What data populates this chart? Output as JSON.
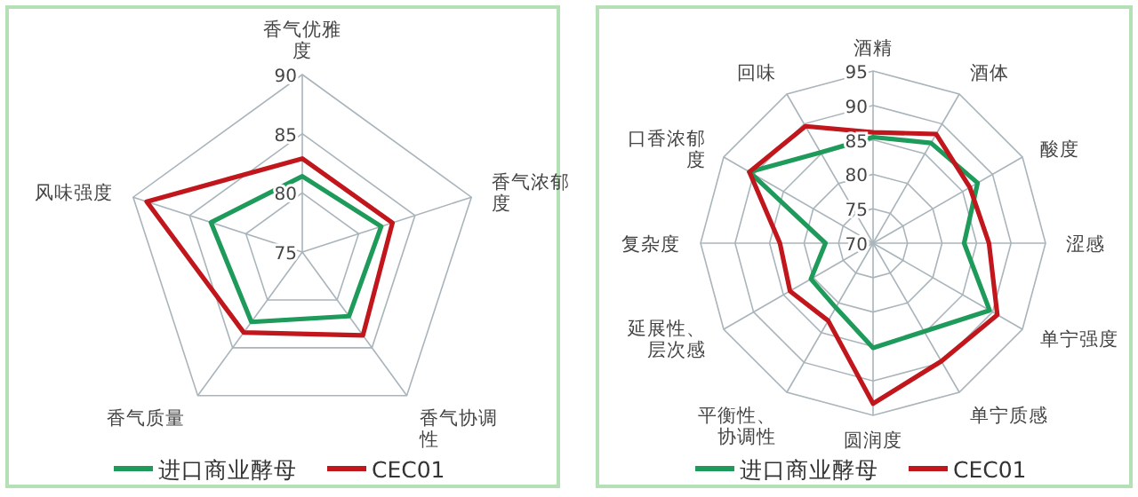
{
  "chart_data": [
    {
      "type": "radar",
      "categories": [
        "香气优雅度",
        "香气浓郁度",
        "香气协调性",
        "香气质量",
        "风味强度"
      ],
      "ylim": [
        75,
        90
      ],
      "yticks": [
        75,
        80,
        85,
        90
      ],
      "legend": "bottom",
      "grid": true,
      "series": [
        {
          "name": "进口商业酵母",
          "color": "#1e9a5a",
          "values": [
            81.4,
            82,
            81.7,
            82.3,
            83.1
          ]
        },
        {
          "name": "CEC01",
          "color": "#c0161c",
          "values": [
            82.9,
            83,
            83.7,
            83.4,
            88.8
          ]
        }
      ]
    },
    {
      "type": "radar",
      "categories": [
        "酒精",
        "酒体",
        "酸度",
        "涩感",
        "单宁强度",
        "单宁质感",
        "圆润度",
        "平衡性、协调性",
        "延展性、层次感",
        "复杂度",
        "口香浓郁度",
        "回味"
      ],
      "ylim": [
        70,
        95
      ],
      "yticks": [
        70,
        75,
        80,
        85,
        90,
        95
      ],
      "legend": "bottom",
      "grid": true,
      "series": [
        {
          "name": "进口商业酵母",
          "color": "#1e9a5a",
          "values": [
            85.4,
            86.8,
            87.5,
            83.2,
            89.5,
            84.8,
            85.2,
            80.8,
            80.4,
            76.9,
            90.7,
            85.2
          ]
        },
        {
          "name": "CEC01",
          "color": "#c0161c",
          "values": [
            86.1,
            88.3,
            86.2,
            86.8,
            90.8,
            89.8,
            93.3,
            83,
            83.9,
            83.5,
            90.7,
            89.6
          ]
        }
      ]
    }
  ]
}
